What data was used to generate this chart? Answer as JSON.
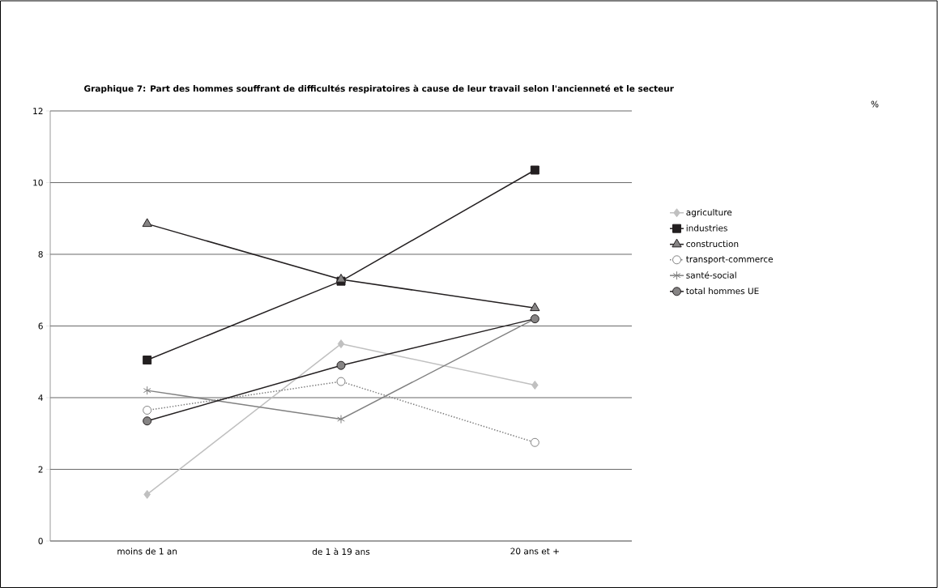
{
  "chart_data": {
    "type": "line",
    "title": "Graphique 7: Part des hommes souffrant de difficultés respiratoires à cause de leur travail selon l'ancienneté et le secteur",
    "annotations": [
      "%"
    ],
    "categories": [
      "moins de 1 an",
      "de 1 à 19 ans",
      "20 ans et +"
    ],
    "series": [
      {
        "name": "agriculture",
        "color": "#c0c0c0",
        "marker": "diamond",
        "line_style": "solid",
        "values": [
          1.3,
          5.5,
          4.35
        ]
      },
      {
        "name": "industries",
        "color": "#231f20",
        "marker": "square",
        "line_style": "solid",
        "values": [
          5.05,
          7.25,
          10.35
        ]
      },
      {
        "name": "construction",
        "color": "#231f20",
        "marker": "triangle",
        "line_style": "solid",
        "values": [
          8.85,
          7.3,
          6.5
        ]
      },
      {
        "name": "transport-commerce",
        "color": "#808080",
        "marker": "circle",
        "line_style": "dotted",
        "values": [
          3.65,
          4.45,
          2.75
        ]
      },
      {
        "name": "santé-social",
        "color": "#808080",
        "marker": "cross",
        "line_style": "solid",
        "values": [
          4.2,
          3.4,
          6.2
        ]
      },
      {
        "name": "total hommes UE",
        "color": "#231f20",
        "marker": "circle",
        "line_style": "solid",
        "values": [
          3.35,
          4.9,
          6.2
        ]
      }
    ],
    "ylim": [
      0,
      12
    ],
    "yticks": [
      0,
      2,
      4,
      6,
      8,
      10,
      12
    ],
    "grid": "y",
    "legend": "right"
  }
}
